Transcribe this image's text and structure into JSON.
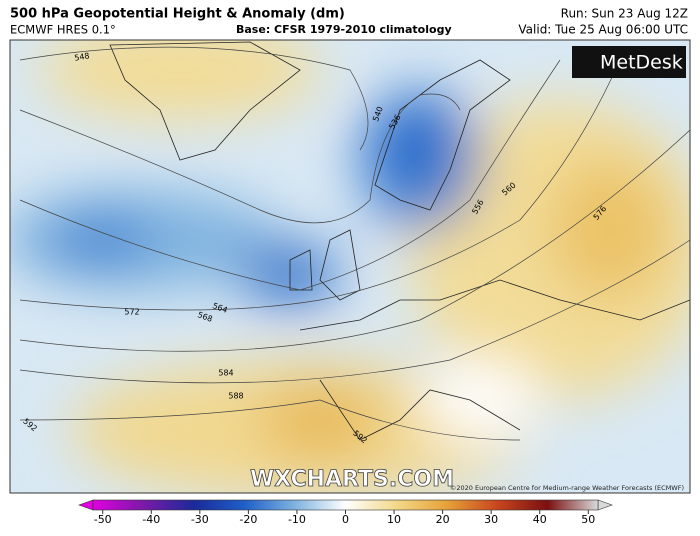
{
  "header": {
    "title": "500 hPa Geopotential Height & Anomaly (dm)",
    "model": "ECMWF HRES 0.1°",
    "base": "Base: CFSR 1979-2010 climatology",
    "run": "Run: Sun 23 Aug 12Z",
    "valid": "Valid: Tue 25 Aug 06:00 UTC"
  },
  "logo": "MetDesk",
  "watermark": "WXCHARTS.COM",
  "copyright": "©2020 European Centre for Medium-range Weather Forecasts (ECMWF)",
  "contour_labels": [
    "548",
    "540",
    "536",
    "556",
    "560",
    "576",
    "572",
    "564",
    "568",
    "584",
    "588",
    "592",
    "592"
  ],
  "colorbar": {
    "lim": [
      -52,
      52
    ],
    "ticks": [
      -50,
      -40,
      -30,
      -20,
      -10,
      0,
      10,
      20,
      30,
      40,
      50
    ],
    "colors": [
      "#e000e0",
      "#7a1aa8",
      "#1a2a9a",
      "#1f5fc8",
      "#7fb3e0",
      "#ffffff",
      "#f3d98a",
      "#e6a23a",
      "#c8461e",
      "#7a1010",
      "#d9d9d9"
    ]
  }
}
